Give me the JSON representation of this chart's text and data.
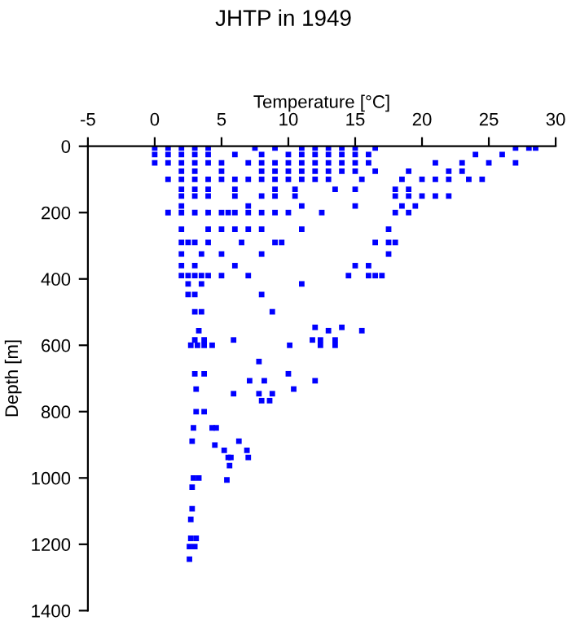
{
  "chart_data": {
    "type": "scatter",
    "title": "JHTP in 1949",
    "xlabel": "Temperature [°C]",
    "ylabel": "Depth [m]",
    "xlim": [
      -5,
      30
    ],
    "xticks": [
      -5,
      0,
      5,
      10,
      15,
      20,
      25,
      30
    ],
    "ylim": [
      1400,
      0
    ],
    "yticks": [
      0,
      200,
      400,
      600,
      800,
      1000,
      1200,
      1400
    ],
    "marker": "square",
    "grid": false,
    "series": [
      {
        "color": "#0000ff",
        "x": [
          0,
          1,
          2,
          3,
          4,
          7.5,
          9,
          11,
          12,
          13,
          14,
          15,
          16.5,
          27,
          28,
          28.5,
          0,
          1,
          2,
          3,
          4,
          6,
          8,
          10,
          11,
          12,
          13,
          14,
          15,
          16,
          24,
          26,
          0,
          1,
          2,
          3,
          4,
          5,
          7,
          8,
          9,
          10,
          11,
          12,
          13,
          14,
          15,
          16,
          21,
          23,
          25,
          27,
          2,
          3,
          5,
          8,
          9,
          10,
          11,
          12,
          13,
          14,
          15,
          16.5,
          19,
          22,
          23,
          1,
          2,
          3,
          4,
          5,
          6,
          7,
          8,
          9,
          10,
          11,
          12,
          13,
          15.5,
          18.5,
          20,
          21,
          22,
          23.5,
          24.5,
          2,
          3,
          4,
          6,
          9,
          10.5,
          13.5,
          15,
          18,
          19,
          2,
          3,
          4,
          6,
          8,
          9,
          10.5,
          18,
          19,
          20,
          21,
          22,
          2,
          7,
          11,
          15,
          18.5,
          19.5,
          1,
          2,
          3,
          4,
          5,
          5.5,
          6,
          7,
          8,
          9,
          10,
          12.5,
          18,
          19,
          2,
          4,
          5,
          6,
          7,
          8,
          11,
          17.5,
          2,
          2.5,
          3,
          4,
          6.5,
          9,
          9.5,
          16.5,
          17.5,
          18,
          2,
          3.5,
          5,
          8,
          17.5,
          2,
          3,
          6,
          15,
          16,
          2,
          2.5,
          3,
          3.5,
          4,
          5,
          7,
          14.5,
          16,
          16.5,
          17,
          2.5,
          3.5,
          11,
          2.5,
          3,
          8,
          3,
          3.5,
          8.8,
          3.3,
          12,
          13,
          14,
          15.5,
          3,
          3.7,
          5.9,
          11.8,
          12.4,
          13.5,
          2.7,
          3.2,
          3.7,
          4.3,
          10.1,
          12.4,
          13.5,
          7.8,
          3,
          3.7,
          10,
          7.1,
          8.2,
          12,
          3.1,
          10.4,
          5.9,
          7.8,
          8.8,
          8,
          8.6,
          3.1,
          3.7,
          2.9,
          4.3,
          4.6,
          2.8,
          6.3,
          4.5,
          5.2,
          6.9,
          5.5,
          5.7,
          7,
          5.6,
          2.9,
          3.3,
          5.4,
          2.8,
          2.8,
          2.7,
          2.7,
          3.1,
          2.6,
          3,
          2.6
        ],
        "values": [
          5,
          5,
          5,
          5,
          5,
          5,
          5,
          5,
          5,
          5,
          5,
          5,
          5,
          5,
          5,
          5,
          25,
          25,
          25,
          25,
          25,
          25,
          25,
          25,
          25,
          25,
          25,
          25,
          25,
          25,
          25,
          25,
          50,
          50,
          50,
          50,
          50,
          50,
          50,
          50,
          50,
          50,
          50,
          50,
          50,
          50,
          50,
          50,
          50,
          50,
          50,
          50,
          75,
          75,
          75,
          75,
          75,
          75,
          75,
          75,
          75,
          75,
          75,
          75,
          75,
          75,
          75,
          100,
          100,
          100,
          100,
          100,
          100,
          100,
          100,
          100,
          100,
          100,
          100,
          100,
          100,
          100,
          100,
          100,
          100,
          100,
          100,
          130,
          130,
          130,
          130,
          130,
          130,
          130,
          130,
          130,
          130,
          150,
          150,
          150,
          150,
          150,
          150,
          150,
          150,
          150,
          150,
          150,
          150,
          180,
          180,
          180,
          180,
          180,
          180,
          200,
          200,
          200,
          200,
          200,
          200,
          200,
          200,
          200,
          200,
          200,
          200,
          200,
          200,
          250,
          250,
          250,
          250,
          250,
          250,
          250,
          250,
          290,
          290,
          290,
          290,
          290,
          290,
          290,
          290,
          290,
          290,
          325,
          325,
          325,
          325,
          325,
          360,
          360,
          360,
          360,
          360,
          390,
          390,
          390,
          390,
          390,
          390,
          390,
          390,
          390,
          390,
          390,
          415,
          415,
          415,
          447,
          447,
          447,
          499,
          499,
          499,
          556,
          546,
          556,
          546,
          556,
          584,
          584,
          584,
          584,
          584,
          584,
          600,
          600,
          600,
          600,
          600,
          600,
          600,
          649,
          686,
          686,
          686,
          707,
          707,
          707,
          732,
          732,
          746,
          746,
          746,
          767,
          767,
          800,
          800,
          849,
          849,
          849,
          889,
          889,
          901,
          917,
          917,
          938,
          938,
          938,
          963,
          1000,
          1000,
          1006,
          1028,
          1093,
          1125,
          1182,
          1182,
          1207,
          1207,
          1245
        ]
      }
    ]
  }
}
